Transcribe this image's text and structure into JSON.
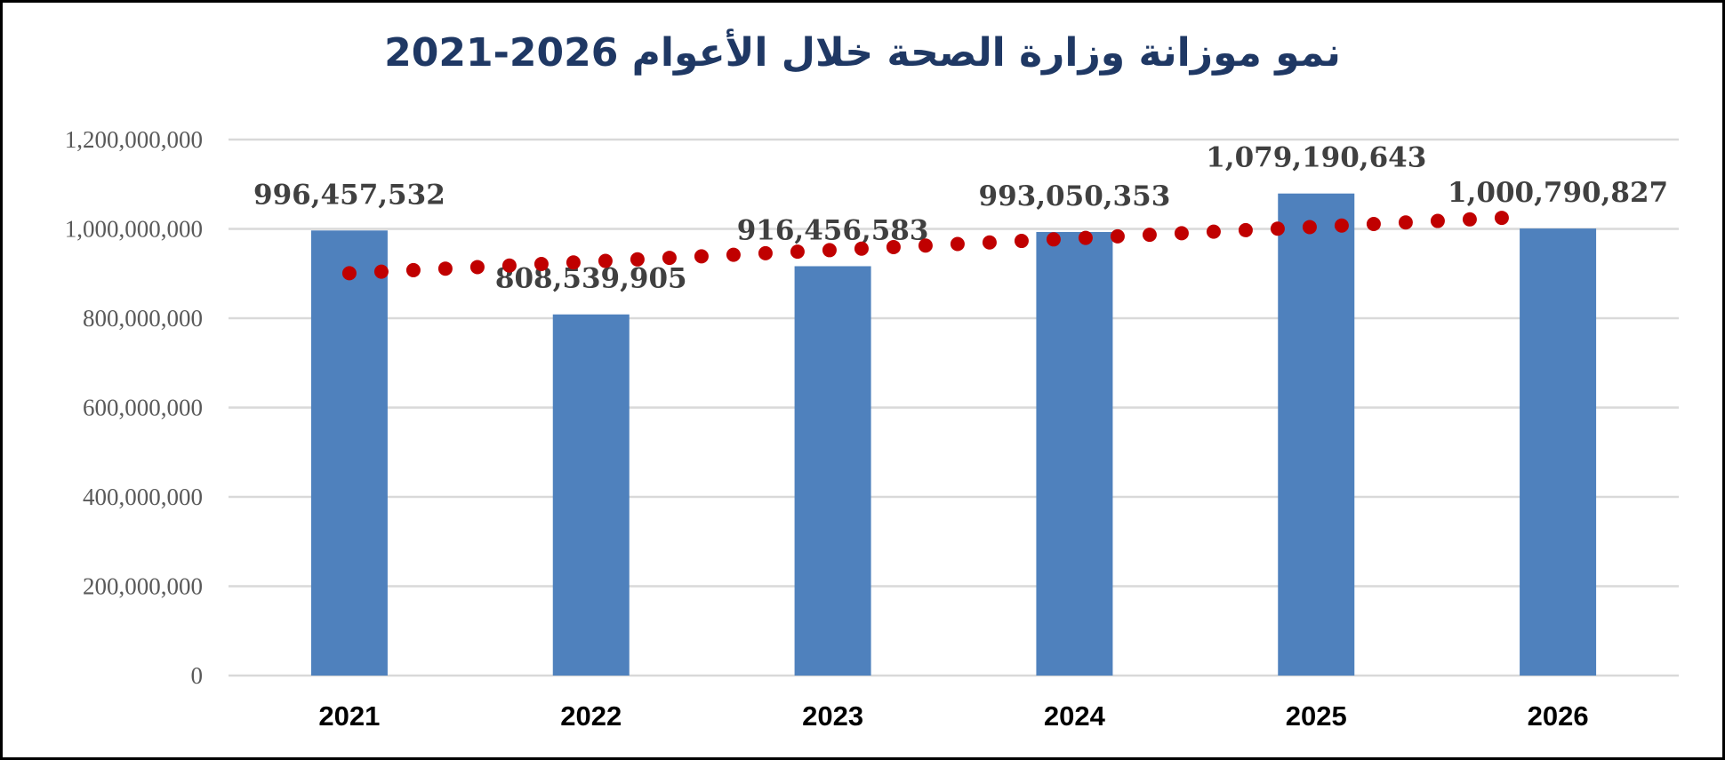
{
  "chart_data": {
    "type": "bar",
    "title": "نمو موزانة وزارة الصحة خلال الأعوام 2026-2021",
    "xlabel": "",
    "ylabel": "",
    "categories": [
      "2021",
      "2022",
      "2023",
      "2024",
      "2025",
      "2026"
    ],
    "values": [
      996457532,
      808539905,
      916456583,
      993050353,
      1079190643,
      1000790827
    ],
    "data_labels": [
      "996,457,532",
      "808,539,905",
      "916,456,583",
      "993,050,353",
      "1,079,190,643",
      "1,000,790,827"
    ],
    "ylim": [
      0,
      1200000000
    ],
    "yticks": [
      0,
      200000000,
      400000000,
      600000000,
      800000000,
      1000000000,
      1200000000
    ],
    "ytick_labels": [
      "0",
      "200,000,000",
      "400,000,000",
      "600,000,000",
      "800,000,000",
      "1,000,000,000",
      "1,200,000,000"
    ],
    "grid": true,
    "trendline": {
      "type": "linear",
      "style": "dotted"
    },
    "colors": {
      "bar": "#4f81bd",
      "trendline": "#c00000",
      "grid": "#d9d9d9",
      "title": "#1f3864"
    }
  }
}
